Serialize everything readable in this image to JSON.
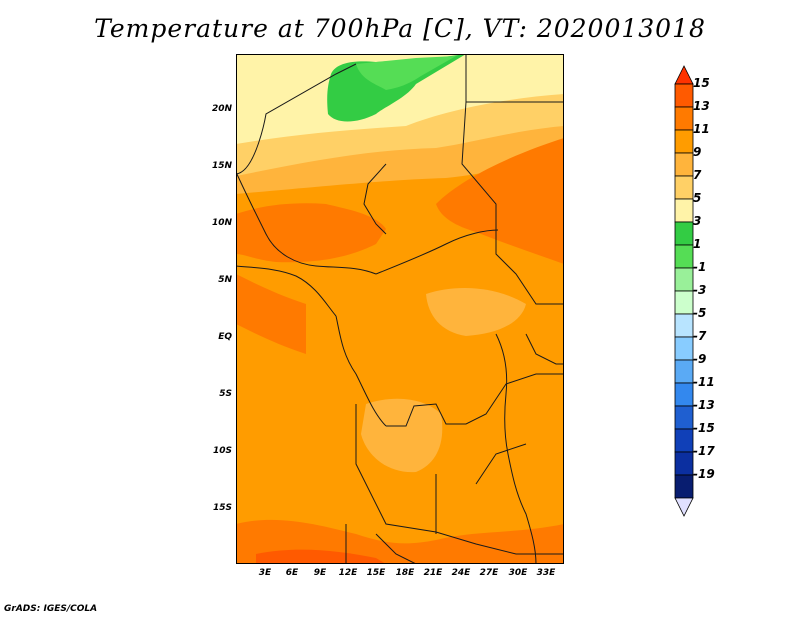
{
  "title": "Temperature at 700hPa [C], VT: 2020013018",
  "credit": "GrADS: IGES/COLA",
  "axes": {
    "lat_labels": [
      "20N",
      "15N",
      "10N",
      "5N",
      "EQ",
      "5S",
      "10S",
      "15S"
    ],
    "lon_labels": [
      "3E",
      "6E",
      "9E",
      "12E",
      "15E",
      "18E",
      "21E",
      "24E",
      "27E",
      "30E",
      "33E"
    ]
  },
  "colorbar": {
    "labels": [
      "15",
      "13",
      "11",
      "9",
      "7",
      "5",
      "3",
      "1",
      "-1",
      "-3",
      "-5",
      "-7",
      "-9",
      "-11",
      "-13",
      "-15",
      "-17",
      "-19"
    ],
    "colors": [
      "#ff3300",
      "#ff5a00",
      "#ff7a00",
      "#ff9c00",
      "#ffb43c",
      "#ffd066",
      "#fff3a8",
      "#33cc44",
      "#55dd55",
      "#99f099",
      "#ccffcc",
      "#b8e4ff",
      "#88ccff",
      "#5aaaf5",
      "#3388ee",
      "#1f5fd0",
      "#1040b8",
      "#0b2fa0",
      "#081d70",
      "#e0e0ff"
    ]
  },
  "map": {
    "field": "Temperature at 700hPa",
    "units": "C",
    "valid_time": "2020013018"
  }
}
